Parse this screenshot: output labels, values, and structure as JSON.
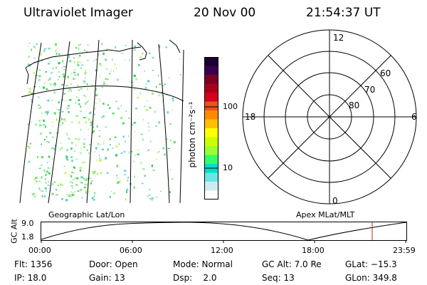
{
  "header": {
    "instrument": "Ultraviolet Imager",
    "date": "20 Nov 00",
    "time": "21:54:37 UT"
  },
  "colorbar": {
    "unit_label": "photon cm⁻²s⁻¹",
    "ticks": [
      "100",
      "10"
    ],
    "colors": [
      "#1a0033",
      "#3a004e",
      "#7a0026",
      "#a8001a",
      "#d4001e",
      "#e8531f",
      "#ff8c00",
      "#ffbf00",
      "#ffff00",
      "#ccff00",
      "#99ff33",
      "#33ff66",
      "#00e0c8",
      "#66e6e6",
      "#cfe9ef",
      "#ffffff"
    ]
  },
  "polar_plot": {
    "labels": {
      "top": "12",
      "bottom": "0",
      "left": "18",
      "right": "6",
      "lat60": "60",
      "lat70": "70",
      "lat80": "80"
    }
  },
  "timeline": {
    "y_axis_label": "GC Alt",
    "y_ticks": [
      "9.0",
      "1.8"
    ],
    "left_caption": "Geographic Lat/Lon",
    "right_caption": "Apex MLat/MLT",
    "x_ticks": [
      "00:00",
      "06:00",
      "12:00",
      "18:00",
      "23:59"
    ],
    "marker_color": "#cc2222"
  },
  "footer": {
    "row1": [
      "Flt: 1356",
      "Door: Open",
      "Mode: Normal",
      "GC Alt: 7.0 Re",
      "GLat: −15.3"
    ],
    "row2": [
      "IP: 18.0",
      "Gain: 13",
      "Dsp:    2.0",
      "Seq: 13",
      "GLon: 349.8"
    ]
  }
}
